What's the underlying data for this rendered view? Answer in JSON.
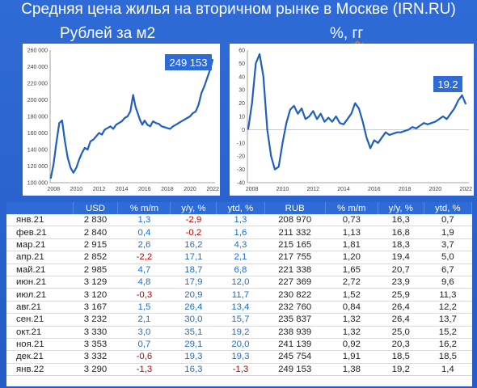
{
  "header": {
    "title": "Средняя цена жилья на вторичном рынке в Москве (IRN.RU)",
    "left_subtitle": "Рублей за м2",
    "right_subtitle_prefix": "%, ",
    "right_subtitle_suffix": "гг"
  },
  "colors": {
    "line": "#1f5fbf",
    "callout": "#2f6bd6",
    "background": "#2f6bd6",
    "positive": "#1a6fd0",
    "negative": "#c00000"
  },
  "chart_data": [
    {
      "type": "line",
      "title": "Рублей за м2",
      "callout": "249 153",
      "x_ticks": [
        "2008",
        "2010",
        "2012",
        "2014",
        "2016",
        "2018",
        "2020",
        "2022"
      ],
      "y_ticks": [
        "100 000",
        "120 000",
        "140 000",
        "160 000",
        "180 000",
        "200 000",
        "220 000",
        "240 000",
        "260 000"
      ],
      "xlim": [
        2007.7,
        2022.2
      ],
      "ylim": [
        100000,
        260000
      ],
      "grid": false,
      "x": [
        2007.75,
        2008.0,
        2008.25,
        2008.5,
        2008.75,
        2009.0,
        2009.25,
        2009.5,
        2009.75,
        2010.0,
        2010.25,
        2010.5,
        2010.75,
        2011.0,
        2011.25,
        2011.5,
        2011.75,
        2012.0,
        2012.25,
        2012.5,
        2012.75,
        2013.0,
        2013.25,
        2013.5,
        2013.75,
        2014.0,
        2014.25,
        2014.5,
        2014.75,
        2015.0,
        2015.2,
        2015.4,
        2015.6,
        2015.8,
        2016.0,
        2016.25,
        2016.5,
        2016.75,
        2017.0,
        2017.25,
        2017.5,
        2017.75,
        2018.0,
        2018.25,
        2018.5,
        2018.75,
        2019.0,
        2019.25,
        2019.5,
        2019.75,
        2020.0,
        2020.25,
        2020.5,
        2020.75,
        2021.0,
        2021.25,
        2021.5,
        2021.75,
        2022.0
      ],
      "values": [
        105000,
        122000,
        148000,
        172000,
        175000,
        150000,
        130000,
        118000,
        112000,
        118000,
        128000,
        136000,
        142000,
        140000,
        150000,
        152000,
        156000,
        160000,
        158000,
        164000,
        166000,
        168000,
        165000,
        170000,
        172000,
        174000,
        178000,
        180000,
        186000,
        206000,
        192000,
        184000,
        176000,
        170000,
        175000,
        170000,
        168000,
        174000,
        172000,
        171000,
        168000,
        167000,
        166000,
        165000,
        168000,
        170000,
        172000,
        174000,
        176000,
        178000,
        180000,
        184000,
        186000,
        194000,
        208000,
        216000,
        226000,
        236000,
        249153
      ]
    },
    {
      "type": "line",
      "title": "%, гг",
      "callout": "19.2",
      "x_ticks": [
        "2008",
        "2010",
        "2012",
        "2014",
        "2016",
        "2018",
        "2020",
        "2022"
      ],
      "y_ticks": [
        "-40",
        "-30",
        "-20",
        "-10",
        "0",
        "10",
        "20",
        "30",
        "40",
        "50",
        "60"
      ],
      "xlim": [
        2007.7,
        2022.2
      ],
      "ylim": [
        -40,
        60
      ],
      "grid": false,
      "x": [
        2007.75,
        2008.0,
        2008.25,
        2008.5,
        2008.75,
        2009.0,
        2009.25,
        2009.5,
        2009.75,
        2010.0,
        2010.25,
        2010.5,
        2010.75,
        2011.0,
        2011.25,
        2011.5,
        2011.75,
        2012.0,
        2012.25,
        2012.5,
        2012.75,
        2013.0,
        2013.25,
        2013.5,
        2013.75,
        2014.0,
        2014.25,
        2014.5,
        2014.75,
        2015.0,
        2015.25,
        2015.5,
        2015.75,
        2016.0,
        2016.25,
        2016.5,
        2016.75,
        2017.0,
        2017.25,
        2017.5,
        2017.75,
        2018.0,
        2018.25,
        2018.5,
        2018.75,
        2019.0,
        2019.25,
        2019.5,
        2019.75,
        2020.0,
        2020.25,
        2020.5,
        2020.75,
        2021.0,
        2021.25,
        2021.5,
        2021.75,
        2022.0
      ],
      "values": [
        0,
        20,
        50,
        57,
        40,
        0,
        -20,
        -30,
        -28,
        -10,
        5,
        15,
        18,
        12,
        16,
        8,
        10,
        14,
        8,
        12,
        6,
        9,
        6,
        10,
        5,
        4,
        8,
        12,
        20,
        16,
        6,
        -6,
        -14,
        -8,
        -10,
        -6,
        -2,
        -4,
        -3,
        -2,
        -2,
        -1,
        0,
        2,
        1,
        3,
        5,
        4,
        5,
        6,
        8,
        10,
        8,
        12,
        16,
        22,
        26,
        19.2
      ]
    }
  ],
  "table": {
    "headers": [
      "",
      "USD",
      "% m/m",
      "y/y, %",
      "ytd, %",
      "RUB",
      "% m/m",
      "y/y, %",
      "ytd, %"
    ],
    "rows": [
      [
        "янв.21",
        "2 830",
        "1,3",
        "-2,9",
        "1,3",
        "208 970",
        "0,73",
        "16,3",
        "0,7"
      ],
      [
        "фев.21",
        "2 840",
        "0,4",
        "-0,2",
        "1,6",
        "211 332",
        "1,13",
        "16,8",
        "1,9"
      ],
      [
        "мар.21",
        "2 915",
        "2,6",
        "16,2",
        "4,3",
        "215 165",
        "1,81",
        "18,3",
        "3,7"
      ],
      [
        "апр.21",
        "2 852",
        "-2,2",
        "17,1",
        "2,1",
        "217 755",
        "1,20",
        "19,4",
        "5,0"
      ],
      [
        "май.21",
        "2 985",
        "4,7",
        "18,7",
        "6,8",
        "221 338",
        "1,65",
        "20,7",
        "6,7"
      ],
      [
        "июн.21",
        "3 129",
        "4,8",
        "17,9",
        "12,0",
        "227 369",
        "2,72",
        "23,9",
        "9,6"
      ],
      [
        "июл.21",
        "3 120",
        "-0,3",
        "20,9",
        "11,7",
        "230 822",
        "1,52",
        "25,9",
        "11,3"
      ],
      [
        "авг.21",
        "3 167",
        "1,5",
        "26,4",
        "13,4",
        "232 760",
        "0,84",
        "26,4",
        "12,2"
      ],
      [
        "сен.21",
        "3 232",
        "2,1",
        "30,0",
        "15,7",
        "235 837",
        "1,32",
        "26,4",
        "13,7"
      ],
      [
        "окт.21",
        "3 330",
        "3,0",
        "35,1",
        "19,2",
        "238 939",
        "1,32",
        "25,0",
        "15,2"
      ],
      [
        "ноя.21",
        "3 353",
        "0,7",
        "29,1",
        "20,0",
        "241 139",
        "0,92",
        "20,3",
        "16,2"
      ],
      [
        "дек.21",
        "3 332",
        "-0,6",
        "19,3",
        "19,3",
        "245 754",
        "1,91",
        "18,5",
        "18,5"
      ],
      [
        "янв.22",
        "3 290",
        "-1,3",
        "16,3",
        "-1,3",
        "249 153",
        "1,38",
        "19,2",
        "1,4"
      ]
    ]
  }
}
